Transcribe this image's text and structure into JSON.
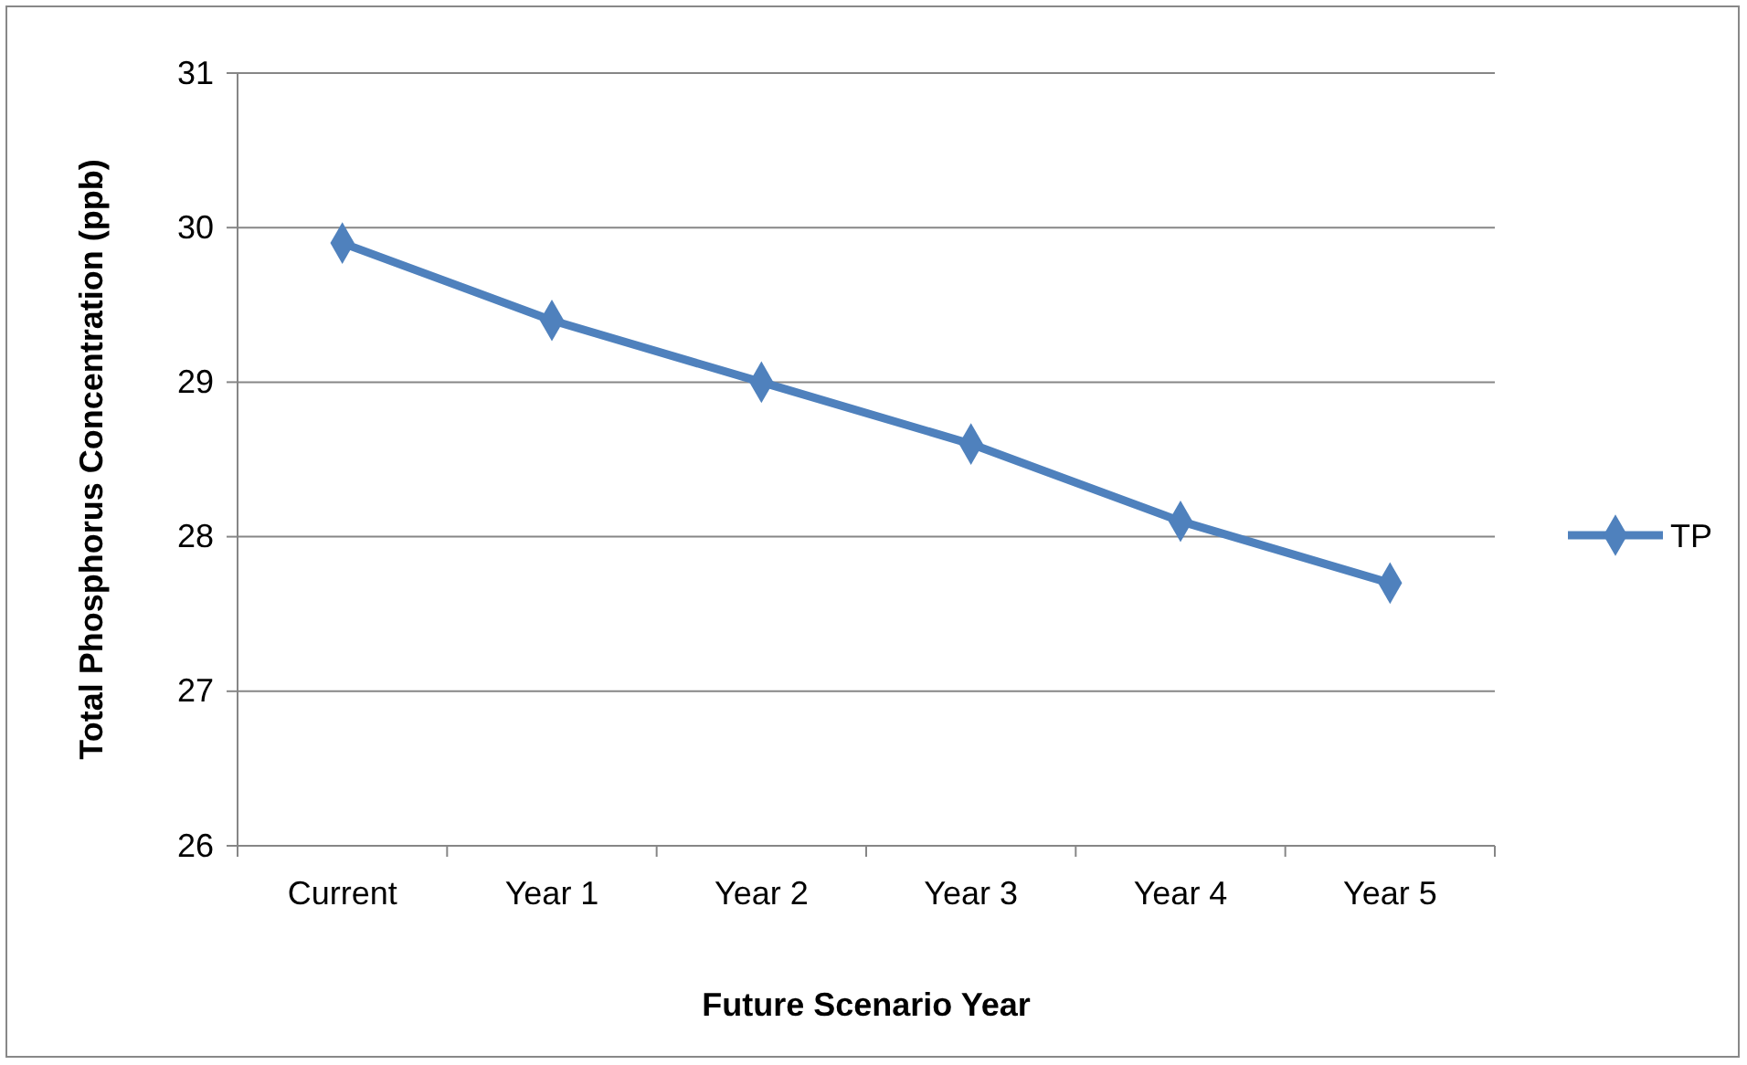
{
  "chart_data": {
    "type": "line",
    "xlabel": "Future Scenario Year",
    "ylabel": "Total Phosphorus Concentration (ppb)",
    "categories": [
      "Current",
      "Year 1",
      "Year 2",
      "Year 3",
      "Year 4",
      "Year 5"
    ],
    "series": [
      {
        "name": "TP",
        "color": "#4f81bd",
        "values": [
          29.9,
          29.4,
          29.0,
          28.6,
          28.1,
          27.7
        ]
      }
    ],
    "ylim": [
      26,
      31
    ],
    "yticks": [
      26,
      27,
      28,
      29,
      30,
      31
    ],
    "grid": "y",
    "legend": "right",
    "marker": "diamond",
    "line_style": "solid"
  }
}
